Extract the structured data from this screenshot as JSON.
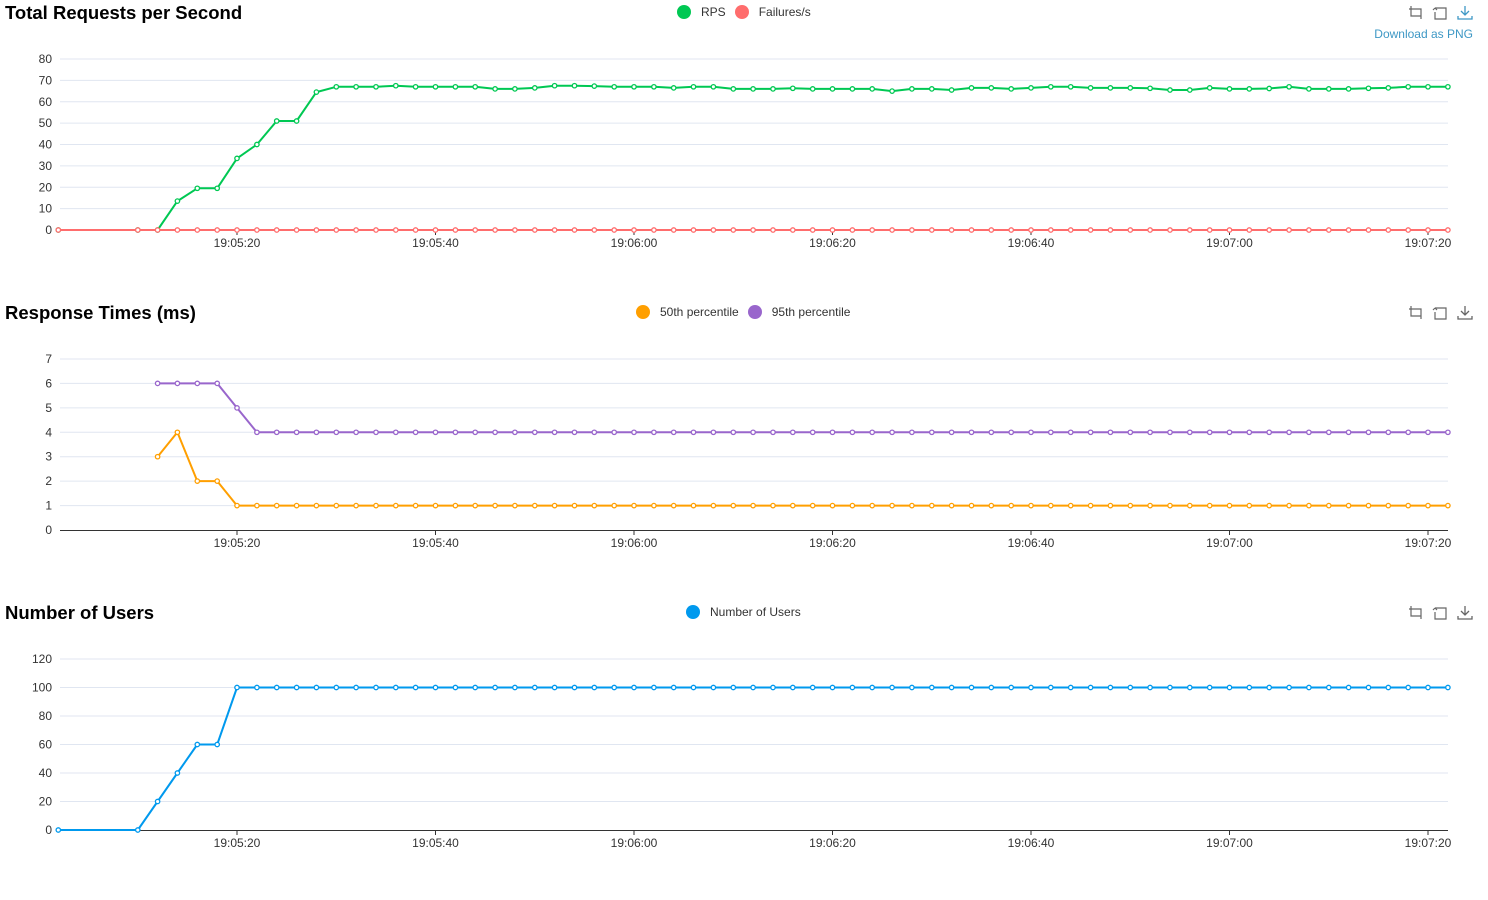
{
  "toolbox": {
    "download_label": "Download as PNG"
  },
  "chart_data": [
    {
      "type": "line",
      "title": "Total Requests per Second",
      "xlabel": "",
      "ylabel": "",
      "x_ticks": [
        "19:05:20",
        "19:05:40",
        "19:06:00",
        "19:06:20",
        "19:06:40",
        "19:07:00",
        "19:07:20"
      ],
      "y_ticks": [
        "0",
        "10",
        "20",
        "30",
        "40",
        "50",
        "60",
        "70",
        "80"
      ],
      "ylim": [
        0,
        80
      ],
      "grid": true,
      "legend_position": "top-center",
      "series": [
        {
          "name": "RPS",
          "color": "#00c853",
          "x": [
            "19:05:02",
            "19:05:10",
            "19:05:12",
            "19:05:14",
            "19:05:16",
            "19:05:18",
            "19:05:20",
            "19:05:22",
            "19:05:24",
            "19:05:26",
            "19:05:28",
            "19:05:30",
            "19:05:32",
            "19:05:34",
            "19:05:36",
            "19:05:38",
            "19:05:40",
            "19:05:42",
            "19:05:44",
            "19:05:46",
            "19:05:48",
            "19:05:50",
            "19:05:52",
            "19:05:54",
            "19:05:56",
            "19:05:58",
            "19:06:00",
            "19:06:02",
            "19:06:04",
            "19:06:06",
            "19:06:08",
            "19:06:10",
            "19:06:12",
            "19:06:14",
            "19:06:16",
            "19:06:18",
            "19:06:20",
            "19:06:22",
            "19:06:24",
            "19:06:26",
            "19:06:28",
            "19:06:30",
            "19:06:32",
            "19:06:34",
            "19:06:36",
            "19:06:38",
            "19:06:40",
            "19:06:42",
            "19:06:44",
            "19:06:46",
            "19:06:48",
            "19:06:50",
            "19:06:52",
            "19:06:54",
            "19:06:56",
            "19:06:58",
            "19:07:00",
            "19:07:02",
            "19:07:04",
            "19:07:06",
            "19:07:08",
            "19:07:10",
            "19:07:12",
            "19:07:14",
            "19:07:16",
            "19:07:18",
            "19:07:20",
            "19:07:22"
          ],
          "values": [
            0,
            0,
            0,
            13.5,
            19.5,
            19.5,
            33.5,
            40,
            51,
            51,
            64.5,
            67,
            67,
            67,
            67.5,
            67,
            67,
            67,
            67,
            66,
            66,
            66.5,
            67.5,
            67.5,
            67.3,
            67,
            67,
            67,
            66.5,
            67,
            67,
            66,
            66,
            66,
            66.3,
            66,
            66,
            66,
            66,
            65,
            66,
            66,
            65.5,
            66.5,
            66.5,
            66,
            66.5,
            67,
            67,
            66.5,
            66.5,
            66.5,
            66.3,
            65.5,
            65.5,
            66.5,
            66,
            66,
            66.2,
            67,
            66,
            66,
            66,
            66.3,
            66.5,
            67,
            67,
            67
          ]
        },
        {
          "name": "Failures/s",
          "color": "#ff6d6d",
          "x": [
            "19:05:02",
            "19:05:10",
            "19:05:12",
            "19:05:14",
            "19:05:16",
            "19:05:18",
            "19:05:20",
            "19:05:22",
            "19:05:24",
            "19:05:26",
            "19:05:28",
            "19:05:30",
            "19:05:32",
            "19:05:34",
            "19:05:36",
            "19:05:38",
            "19:05:40",
            "19:05:42",
            "19:05:44",
            "19:05:46",
            "19:05:48",
            "19:05:50",
            "19:05:52",
            "19:05:54",
            "19:05:56",
            "19:05:58",
            "19:06:00",
            "19:06:02",
            "19:06:04",
            "19:06:06",
            "19:06:08",
            "19:06:10",
            "19:06:12",
            "19:06:14",
            "19:06:16",
            "19:06:18",
            "19:06:20",
            "19:06:22",
            "19:06:24",
            "19:06:26",
            "19:06:28",
            "19:06:30",
            "19:06:32",
            "19:06:34",
            "19:06:36",
            "19:06:38",
            "19:06:40",
            "19:06:42",
            "19:06:44",
            "19:06:46",
            "19:06:48",
            "19:06:50",
            "19:06:52",
            "19:06:54",
            "19:06:56",
            "19:06:58",
            "19:07:00",
            "19:07:02",
            "19:07:04",
            "19:07:06",
            "19:07:08",
            "19:07:10",
            "19:07:12",
            "19:07:14",
            "19:07:16",
            "19:07:18",
            "19:07:20",
            "19:07:22"
          ],
          "values": [
            0,
            0,
            0,
            0,
            0,
            0,
            0,
            0,
            0,
            0,
            0,
            0,
            0,
            0,
            0,
            0,
            0,
            0,
            0,
            0,
            0,
            0,
            0,
            0,
            0,
            0,
            0,
            0,
            0,
            0,
            0,
            0,
            0,
            0,
            0,
            0,
            0,
            0,
            0,
            0,
            0,
            0,
            0,
            0,
            0,
            0,
            0,
            0,
            0,
            0,
            0,
            0,
            0,
            0,
            0,
            0,
            0,
            0,
            0,
            0,
            0,
            0,
            0,
            0,
            0,
            0,
            0,
            0
          ]
        }
      ]
    },
    {
      "type": "line",
      "title": "Response Times (ms)",
      "xlabel": "",
      "ylabel": "",
      "x_ticks": [
        "19:05:20",
        "19:05:40",
        "19:06:00",
        "19:06:20",
        "19:06:40",
        "19:07:00",
        "19:07:20"
      ],
      "y_ticks": [
        "0",
        "1",
        "2",
        "3",
        "4",
        "5",
        "6",
        "7"
      ],
      "ylim": [
        0,
        7
      ],
      "grid": true,
      "legend_position": "top-center",
      "series": [
        {
          "name": "50th percentile",
          "color": "#ff9f00",
          "x": [
            "19:05:12",
            "19:05:14",
            "19:05:16",
            "19:05:18",
            "19:05:20",
            "19:05:22",
            "19:05:24",
            "19:05:26",
            "19:05:28",
            "19:05:30",
            "19:05:32",
            "19:05:34",
            "19:05:36",
            "19:05:38",
            "19:05:40",
            "19:05:42",
            "19:05:44",
            "19:05:46",
            "19:05:48",
            "19:05:50",
            "19:05:52",
            "19:05:54",
            "19:05:56",
            "19:05:58",
            "19:06:00",
            "19:06:02",
            "19:06:04",
            "19:06:06",
            "19:06:08",
            "19:06:10",
            "19:06:12",
            "19:06:14",
            "19:06:16",
            "19:06:18",
            "19:06:20",
            "19:06:22",
            "19:06:24",
            "19:06:26",
            "19:06:28",
            "19:06:30",
            "19:06:32",
            "19:06:34",
            "19:06:36",
            "19:06:38",
            "19:06:40",
            "19:06:42",
            "19:06:44",
            "19:06:46",
            "19:06:48",
            "19:06:50",
            "19:06:52",
            "19:06:54",
            "19:06:56",
            "19:06:58",
            "19:07:00",
            "19:07:02",
            "19:07:04",
            "19:07:06",
            "19:07:08",
            "19:07:10",
            "19:07:12",
            "19:07:14",
            "19:07:16",
            "19:07:18",
            "19:07:20",
            "19:07:22"
          ],
          "values": [
            3,
            4,
            2,
            2,
            1,
            1,
            1,
            1,
            1,
            1,
            1,
            1,
            1,
            1,
            1,
            1,
            1,
            1,
            1,
            1,
            1,
            1,
            1,
            1,
            1,
            1,
            1,
            1,
            1,
            1,
            1,
            1,
            1,
            1,
            1,
            1,
            1,
            1,
            1,
            1,
            1,
            1,
            1,
            1,
            1,
            1,
            1,
            1,
            1,
            1,
            1,
            1,
            1,
            1,
            1,
            1,
            1,
            1,
            1,
            1,
            1,
            1,
            1,
            1,
            1,
            1
          ]
        },
        {
          "name": "95th percentile",
          "color": "#9966cc",
          "x": [
            "19:05:12",
            "19:05:14",
            "19:05:16",
            "19:05:18",
            "19:05:20",
            "19:05:22",
            "19:05:24",
            "19:05:26",
            "19:05:28",
            "19:05:30",
            "19:05:32",
            "19:05:34",
            "19:05:36",
            "19:05:38",
            "19:05:40",
            "19:05:42",
            "19:05:44",
            "19:05:46",
            "19:05:48",
            "19:05:50",
            "19:05:52",
            "19:05:54",
            "19:05:56",
            "19:05:58",
            "19:06:00",
            "19:06:02",
            "19:06:04",
            "19:06:06",
            "19:06:08",
            "19:06:10",
            "19:06:12",
            "19:06:14",
            "19:06:16",
            "19:06:18",
            "19:06:20",
            "19:06:22",
            "19:06:24",
            "19:06:26",
            "19:06:28",
            "19:06:30",
            "19:06:32",
            "19:06:34",
            "19:06:36",
            "19:06:38",
            "19:06:40",
            "19:06:42",
            "19:06:44",
            "19:06:46",
            "19:06:48",
            "19:06:50",
            "19:06:52",
            "19:06:54",
            "19:06:56",
            "19:06:58",
            "19:07:00",
            "19:07:02",
            "19:07:04",
            "19:07:06",
            "19:07:08",
            "19:07:10",
            "19:07:12",
            "19:07:14",
            "19:07:16",
            "19:07:18",
            "19:07:20",
            "19:07:22"
          ],
          "values": [
            6,
            6,
            6,
            6,
            5,
            4,
            4,
            4,
            4,
            4,
            4,
            4,
            4,
            4,
            4,
            4,
            4,
            4,
            4,
            4,
            4,
            4,
            4,
            4,
            4,
            4,
            4,
            4,
            4,
            4,
            4,
            4,
            4,
            4,
            4,
            4,
            4,
            4,
            4,
            4,
            4,
            4,
            4,
            4,
            4,
            4,
            4,
            4,
            4,
            4,
            4,
            4,
            4,
            4,
            4,
            4,
            4,
            4,
            4,
            4,
            4,
            4,
            4,
            4,
            4,
            4
          ]
        }
      ]
    },
    {
      "type": "line",
      "title": "Number of Users",
      "xlabel": "",
      "ylabel": "",
      "x_ticks": [
        "19:05:20",
        "19:05:40",
        "19:06:00",
        "19:06:20",
        "19:06:40",
        "19:07:00",
        "19:07:20"
      ],
      "y_ticks": [
        "0",
        "20",
        "40",
        "60",
        "80",
        "100",
        "120"
      ],
      "ylim": [
        0,
        120
      ],
      "grid": true,
      "legend_position": "top-center",
      "series": [
        {
          "name": "Number of Users",
          "color": "#0099ee",
          "x": [
            "19:05:02",
            "19:05:10",
            "19:05:12",
            "19:05:14",
            "19:05:16",
            "19:05:18",
            "19:05:20",
            "19:05:22",
            "19:05:24",
            "19:05:26",
            "19:05:28",
            "19:05:30",
            "19:05:32",
            "19:05:34",
            "19:05:36",
            "19:05:38",
            "19:05:40",
            "19:05:42",
            "19:05:44",
            "19:05:46",
            "19:05:48",
            "19:05:50",
            "19:05:52",
            "19:05:54",
            "19:05:56",
            "19:05:58",
            "19:06:00",
            "19:06:02",
            "19:06:04",
            "19:06:06",
            "19:06:08",
            "19:06:10",
            "19:06:12",
            "19:06:14",
            "19:06:16",
            "19:06:18",
            "19:06:20",
            "19:06:22",
            "19:06:24",
            "19:06:26",
            "19:06:28",
            "19:06:30",
            "19:06:32",
            "19:06:34",
            "19:06:36",
            "19:06:38",
            "19:06:40",
            "19:06:42",
            "19:06:44",
            "19:06:46",
            "19:06:48",
            "19:06:50",
            "19:06:52",
            "19:06:54",
            "19:06:56",
            "19:06:58",
            "19:07:00",
            "19:07:02",
            "19:07:04",
            "19:07:06",
            "19:07:08",
            "19:07:10",
            "19:07:12",
            "19:07:14",
            "19:07:16",
            "19:07:18",
            "19:07:20",
            "19:07:22"
          ],
          "values": [
            0,
            0,
            20,
            40,
            60,
            60,
            100,
            100,
            100,
            100,
            100,
            100,
            100,
            100,
            100,
            100,
            100,
            100,
            100,
            100,
            100,
            100,
            100,
            100,
            100,
            100,
            100,
            100,
            100,
            100,
            100,
            100,
            100,
            100,
            100,
            100,
            100,
            100,
            100,
            100,
            100,
            100,
            100,
            100,
            100,
            100,
            100,
            100,
            100,
            100,
            100,
            100,
            100,
            100,
            100,
            100,
            100,
            100,
            100,
            100,
            100,
            100,
            100,
            100,
            100,
            100,
            100,
            100
          ]
        }
      ]
    }
  ]
}
